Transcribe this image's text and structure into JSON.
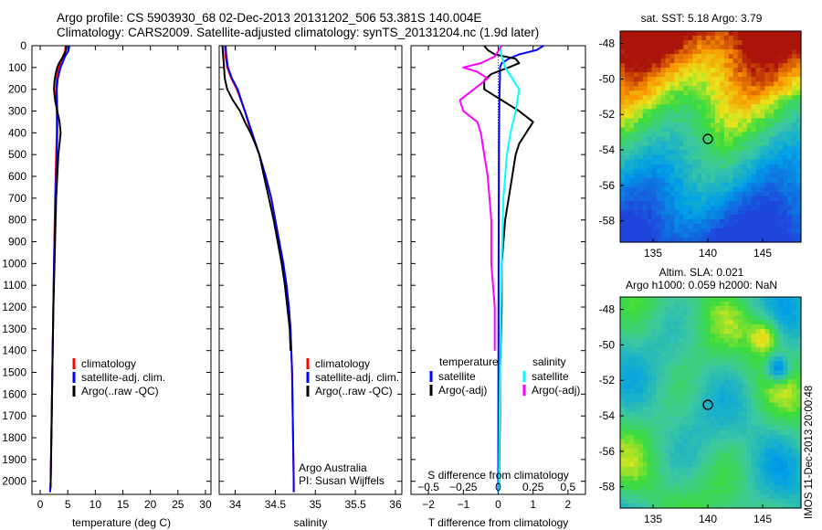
{
  "header": {
    "line1": "Argo profile: CS 5903930_68 02-Dec-2013 20131202_506 53.381S 140.004E",
    "line2": "Climatology: CARS2009. Satellite-adjusted climatology: synTS_20131204.nc (1.9d later)"
  },
  "side_stamp": "IMOS 11-Dec-2013 20:00:48",
  "chart_data": [
    {
      "id": "temperature",
      "type": "line",
      "xlabel": "temperature (deg C)",
      "ylabel": "",
      "xlim": [
        -1.5,
        31
      ],
      "ylim": [
        2060,
        0
      ],
      "xticks": [
        0,
        5,
        10,
        15,
        20,
        25,
        30
      ],
      "xticklabels": [
        "0",
        "5",
        "10",
        "15",
        "20",
        "25",
        "30"
      ],
      "yticks": [
        0,
        100,
        200,
        300,
        400,
        500,
        600,
        700,
        800,
        900,
        1000,
        1100,
        1200,
        1300,
        1400,
        1500,
        1600,
        1700,
        1800,
        1900,
        2000
      ],
      "yticklabels": [
        "0",
        "100",
        "200",
        "300",
        "400",
        "500",
        "600",
        "700",
        "800",
        "900",
        "1000",
        "1100",
        "1200",
        "1300",
        "1400",
        "1500",
        "1600",
        "1700",
        "1800",
        "1900",
        "2000"
      ],
      "legend": {
        "position": "lower-center",
        "items": [
          {
            "label": "climatology",
            "color": "#ff0000"
          },
          {
            "label": "satellite-adj. clim.",
            "color": "#0000ff"
          },
          {
            "label": "Argo(..raw -QC)",
            "color": "#000000"
          }
        ]
      },
      "series": [
        {
          "name": "climatology",
          "color": "#ff0000",
          "y": [
            0,
            25,
            50,
            100,
            150,
            200,
            300,
            400,
            500,
            700,
            1000,
            1500,
            2000,
            2050
          ],
          "x": [
            4.6,
            4.5,
            4.1,
            3.4,
            3.0,
            2.9,
            3.0,
            3.0,
            2.9,
            2.7,
            2.5,
            2.2,
            1.9,
            1.8
          ]
        },
        {
          "name": "satellite-adj. clim.",
          "color": "#0000ff",
          "y": [
            0,
            25,
            50,
            100,
            150,
            200,
            300,
            400,
            500,
            700,
            1000,
            1500,
            2000,
            2050
          ],
          "x": [
            5.3,
            5.1,
            4.5,
            3.7,
            3.2,
            3.0,
            3.1,
            3.1,
            3.0,
            2.8,
            2.5,
            2.2,
            1.9,
            1.8
          ]
        },
        {
          "name": "Argo(..raw -QC)",
          "color": "#000000",
          "y": [
            0,
            20,
            40,
            60,
            80,
            100,
            130,
            160,
            200,
            250,
            300,
            350,
            400,
            450,
            500,
            600,
            700,
            800,
            1000,
            1200,
            1500,
            1700,
            2000,
            2030
          ],
          "x": [
            4.7,
            4.7,
            4.4,
            3.9,
            3.4,
            3.1,
            2.8,
            2.6,
            2.5,
            2.7,
            3.1,
            3.5,
            3.7,
            3.5,
            3.3,
            3.1,
            2.9,
            2.8,
            2.6,
            2.4,
            2.2,
            2.1,
            1.9,
            1.9
          ]
        }
      ]
    },
    {
      "id": "salinity",
      "type": "line",
      "xlabel": "salinity",
      "ylabel": "",
      "xlim": [
        33.8,
        36.08
      ],
      "ylim": [
        2060,
        0
      ],
      "xticks": [
        34,
        34.5,
        35,
        35.5,
        36
      ],
      "xticklabels": [
        "34",
        "34.5",
        "35",
        "35.5",
        "36"
      ],
      "legend": {
        "position": "lower-right",
        "items": [
          {
            "label": "climatology",
            "color": "#ff0000"
          },
          {
            "label": "satellite-adj. clim.",
            "color": "#0000ff"
          },
          {
            "label": "Argo(..raw -QC)",
            "color": "#000000"
          }
        ]
      },
      "annotations": [
        "Argo Australia",
        "PI: Susan Wijffels"
      ],
      "series": [
        {
          "name": "climatology",
          "color": "#ff0000",
          "y": [
            0,
            50,
            100,
            150,
            200,
            300,
            400,
            500,
            600,
            700,
            800,
            900,
            1000,
            1100,
            1200,
            1300,
            1500,
            2000,
            2050
          ],
          "x": [
            33.87,
            33.88,
            33.9,
            33.95,
            34.02,
            34.12,
            34.2,
            34.3,
            34.38,
            34.45,
            34.5,
            34.55,
            34.6,
            34.64,
            34.67,
            34.69,
            34.71,
            34.73,
            34.73
          ]
        },
        {
          "name": "satellite-adj. clim.",
          "color": "#0000ff",
          "y": [
            0,
            50,
            100,
            150,
            200,
            300,
            400,
            500,
            600,
            700,
            800,
            900,
            1000,
            1100,
            1200,
            1300,
            1500,
            2000,
            2050
          ],
          "x": [
            33.88,
            33.89,
            33.91,
            33.96,
            34.03,
            34.12,
            34.21,
            34.3,
            34.38,
            34.45,
            34.5,
            34.55,
            34.6,
            34.64,
            34.67,
            34.69,
            34.71,
            34.73,
            34.73
          ]
        },
        {
          "name": "Argo(..raw -QC)",
          "color": "#000000",
          "y": [
            0,
            100,
            150,
            200,
            250,
            300,
            350,
            400,
            450,
            500,
            600,
            700,
            800,
            900,
            1000,
            1100,
            1200,
            1300,
            1400
          ],
          "x": [
            33.84,
            33.86,
            33.87,
            33.9,
            33.97,
            34.06,
            34.12,
            34.19,
            34.25,
            34.3,
            34.36,
            34.42,
            34.48,
            34.53,
            34.58,
            34.62,
            34.65,
            34.68,
            34.69
          ]
        }
      ]
    },
    {
      "id": "difference",
      "type": "line",
      "xlabel": "T difference from climatology",
      "xlabel_top": "S difference from climatology",
      "xlim": [
        -2.5,
        2.5
      ],
      "ylim": [
        2060,
        0
      ],
      "xticks": [
        -2,
        -1,
        0,
        1,
        2
      ],
      "xticklabels": [
        "−2",
        "−1",
        "0",
        "1",
        "2"
      ],
      "sticks_pos": [
        -2,
        -1,
        0,
        1,
        2
      ],
      "sticklabels": [
        "−0.5",
        "−0.25",
        "0",
        "0.25",
        "0.5"
      ],
      "legend": {
        "position": "lower",
        "items": [
          {
            "group": "temperature",
            "label": "satellite",
            "color": "#0000ff"
          },
          {
            "group": "temperature",
            "label": "Argo(-adj)",
            "color": "#000000"
          },
          {
            "group": "salinity",
            "label": "satellite",
            "color": "#00ffff"
          },
          {
            "group": "salinity",
            "label": "Argo(-adj)",
            "color": "#ff00ff"
          }
        ]
      },
      "legend_headers": [
        "temperature",
        "salinity"
      ],
      "series": [
        {
          "name": "T satellite",
          "color": "#0000ff",
          "y": [
            0,
            20,
            40,
            60,
            80,
            100,
            150,
            200,
            300,
            500,
            1000,
            2050
          ],
          "x": [
            1.3,
            1.1,
            0.6,
            0.3,
            0.1,
            0.05,
            0.05,
            0.04,
            0.03,
            0.02,
            0.01,
            0.0
          ]
        },
        {
          "name": "T Argo(-adj)",
          "color": "#000000",
          "y": [
            0,
            20,
            40,
            60,
            80,
            100,
            130,
            160,
            200,
            250,
            300,
            350,
            400,
            450,
            500,
            600,
            700,
            800,
            1000,
            1200,
            1500,
            1700,
            2000,
            2030
          ],
          "x": [
            -0.4,
            -0.3,
            -0.1,
            0.5,
            0.6,
            0.3,
            -0.2,
            -0.4,
            -0.4,
            0.1,
            0.6,
            1.0,
            0.8,
            0.6,
            0.5,
            0.4,
            0.3,
            0.2,
            0.1,
            0.1,
            0.05,
            0.05,
            0.03,
            0.03
          ]
        },
        {
          "name": "S satellite",
          "color": "#00ffff",
          "y": [
            0,
            50,
            100,
            150,
            200,
            300,
            400,
            500,
            700,
            1000,
            1500,
            2050
          ],
          "x": [
            0.05,
            0.1,
            0.2,
            0.4,
            0.6,
            0.5,
            0.35,
            0.25,
            0.15,
            0.1,
            0.05,
            0.02
          ]
        },
        {
          "name": "S Argo(-adj)",
          "color": "#ff00ff",
          "y": [
            0,
            50,
            80,
            100,
            120,
            150,
            200,
            250,
            300,
            350,
            400,
            500,
            600,
            800,
            1000,
            1200,
            1400
          ],
          "x": [
            0.1,
            -0.1,
            -0.5,
            -1.0,
            -0.6,
            -0.3,
            -0.7,
            -1.1,
            -1.0,
            -0.6,
            -0.5,
            -0.4,
            -0.3,
            -0.2,
            -0.2,
            -0.1,
            -0.1
          ]
        }
      ]
    }
  ],
  "maps": [
    {
      "id": "sst",
      "type": "heatmap",
      "title": "sat. SST: 5.18  Argo: 3.79",
      "xlim": [
        132,
        148.5
      ],
      "ylim": [
        -59.2,
        -47.3
      ],
      "xticks": [
        135,
        140,
        145
      ],
      "xticklabels": [
        "135",
        "140",
        "145"
      ],
      "yticks": [
        -48,
        -50,
        -52,
        -54,
        -56,
        -58
      ],
      "yticklabels": [
        "-48",
        "-50",
        "-52",
        "-54",
        "-56",
        "-58"
      ],
      "marker": {
        "lon": 140.004,
        "lat": -53.381
      }
    },
    {
      "id": "sla",
      "type": "heatmap",
      "title_line1": "Altim. SLA: 0.021",
      "title_line2": "Argo h1000: 0.059  h2000: NaN",
      "xlim": [
        132,
        148.5
      ],
      "ylim": [
        -59.2,
        -47.3
      ],
      "xticks": [
        135,
        140,
        145
      ],
      "xticklabels": [
        "135",
        "140",
        "145"
      ],
      "yticks": [
        -48,
        -50,
        -52,
        -54,
        -56,
        -58
      ],
      "yticklabels": [
        "-48",
        "-50",
        "-52",
        "-54",
        "-56",
        "-58"
      ],
      "marker": {
        "lon": 140.004,
        "lat": -53.381
      }
    }
  ]
}
